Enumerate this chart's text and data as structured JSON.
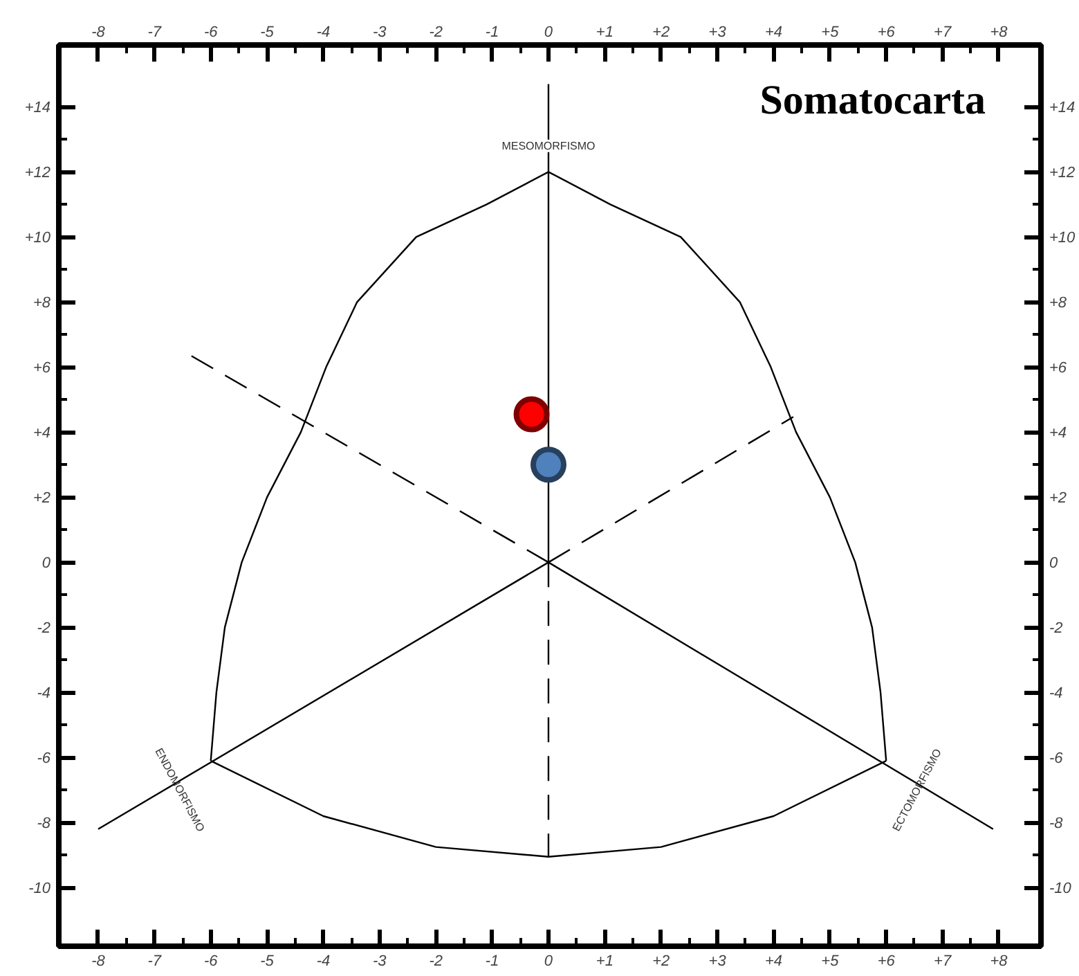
{
  "chart_data": {
    "type": "scatter",
    "title": "Somatocarta",
    "grid": false,
    "xlim": [
      -8.7,
      8.75
    ],
    "ylim": [
      -11.8,
      15.9
    ],
    "x2lim": [
      -8.7,
      8.75
    ],
    "y2lim": [
      -11.8,
      15.9
    ],
    "xticks": [
      -8,
      -7,
      -6,
      -5,
      -4,
      -3,
      -2,
      -1,
      0,
      {
        "value": 1,
        "label": "+1"
      },
      {
        "value": 2,
        "label": "+2"
      },
      {
        "value": 3,
        "label": "+3"
      },
      {
        "value": 4,
        "label": "+4"
      },
      {
        "value": 5,
        "label": "+5"
      },
      {
        "value": 6,
        "label": "+6"
      },
      {
        "value": 7,
        "label": "+7"
      },
      {
        "value": 8,
        "label": "+8"
      }
    ],
    "x2ticks": [
      -8,
      -7,
      -6,
      -5,
      -4,
      -3,
      -2,
      -1,
      0,
      {
        "value": 1,
        "label": "+1"
      },
      {
        "value": 2,
        "label": "+2"
      },
      {
        "value": 3,
        "label": "+3"
      },
      {
        "value": 4,
        "label": "+4"
      },
      {
        "value": 5,
        "label": "+5"
      },
      {
        "value": 6,
        "label": "+6"
      },
      {
        "value": 7,
        "label": "+7"
      },
      {
        "value": 8,
        "label": "+8"
      }
    ],
    "yticks": [
      -10,
      -8,
      -6,
      -4,
      -2,
      0,
      {
        "value": 2,
        "label": "+2"
      },
      {
        "value": 4,
        "label": "+4"
      },
      {
        "value": 6,
        "label": "+6"
      },
      {
        "value": 8,
        "label": "+8"
      },
      {
        "value": 10,
        "label": "+10"
      },
      {
        "value": 12,
        "label": "+12"
      },
      {
        "value": 14,
        "label": "+14"
      }
    ],
    "y2ticks": [
      -10,
      -8,
      -6,
      -4,
      -2,
      0,
      {
        "value": 2,
        "label": "+2"
      },
      {
        "value": 4,
        "label": "+4"
      },
      {
        "value": 6,
        "label": "+6"
      },
      {
        "value": 8,
        "label": "+8"
      },
      {
        "value": 10,
        "label": "+10"
      },
      {
        "value": 12,
        "label": "+12"
      },
      {
        "value": 14,
        "label": "+14"
      }
    ],
    "annotations": [
      "MESOMORFISMO",
      "ENDOMORFISMO",
      "ECTOMORFISMO"
    ],
    "series": [
      {
        "type": "line",
        "color": "#000000",
        "line_style": "solid",
        "x": [
          0,
          -1.1,
          -2.35,
          -3.4,
          -3.95,
          -4.4,
          -5.0,
          -5.45,
          -5.75,
          -5.9,
          -6.0
        ],
        "values": [
          12,
          11,
          10,
          8,
          6,
          4,
          2,
          0,
          -2,
          -4,
          -6.1
        ]
      },
      {
        "type": "line",
        "color": "#000000",
        "line_style": "solid",
        "x": [
          0,
          1.1,
          2.35,
          3.4,
          3.95,
          4.4,
          5.0,
          5.45,
          5.75,
          5.9,
          6.0
        ],
        "values": [
          12,
          11,
          10,
          8,
          6,
          4,
          2,
          0,
          -2,
          -4,
          -6.1
        ]
      },
      {
        "type": "line",
        "color": "#000000",
        "line_style": "solid",
        "x": [
          -6.0,
          -4,
          -2,
          0,
          2,
          4,
          6.0
        ],
        "values": [
          -6.1,
          -7.8,
          -8.75,
          -9.05,
          -8.75,
          -7.8,
          -6.1
        ]
      },
      {
        "type": "line",
        "color": "#000000",
        "line_style": "solid",
        "x": [
          0,
          0
        ],
        "values": [
          0,
          14.7
        ]
      },
      {
        "type": "line",
        "color": "#000000",
        "line_style": "solid",
        "x": [
          0,
          -8.0
        ],
        "values": [
          0,
          -8.2
        ]
      },
      {
        "type": "line",
        "color": "#000000",
        "line_style": "solid",
        "x": [
          0,
          7.9
        ],
        "values": [
          0,
          -8.2
        ]
      },
      {
        "type": "line",
        "color": "#000000",
        "line_style": "dashed",
        "x": [
          0,
          -6.4
        ],
        "values": [
          0,
          6.4
        ]
      },
      {
        "type": "line",
        "color": "#000000",
        "line_style": "dashed",
        "x": [
          0,
          4.35
        ],
        "values": [
          0,
          4.47
        ]
      },
      {
        "type": "line",
        "color": "#000000",
        "line_style": "dashed",
        "x": [
          0,
          0
        ],
        "values": [
          0,
          -9.05
        ]
      },
      {
        "marker": "circle",
        "color": "#ff0000",
        "x": [
          -0.3
        ],
        "values": [
          4.55
        ]
      },
      {
        "marker": "circle",
        "color": "#4f81bd",
        "x": [
          0.0
        ],
        "values": [
          3.0
        ]
      }
    ]
  }
}
